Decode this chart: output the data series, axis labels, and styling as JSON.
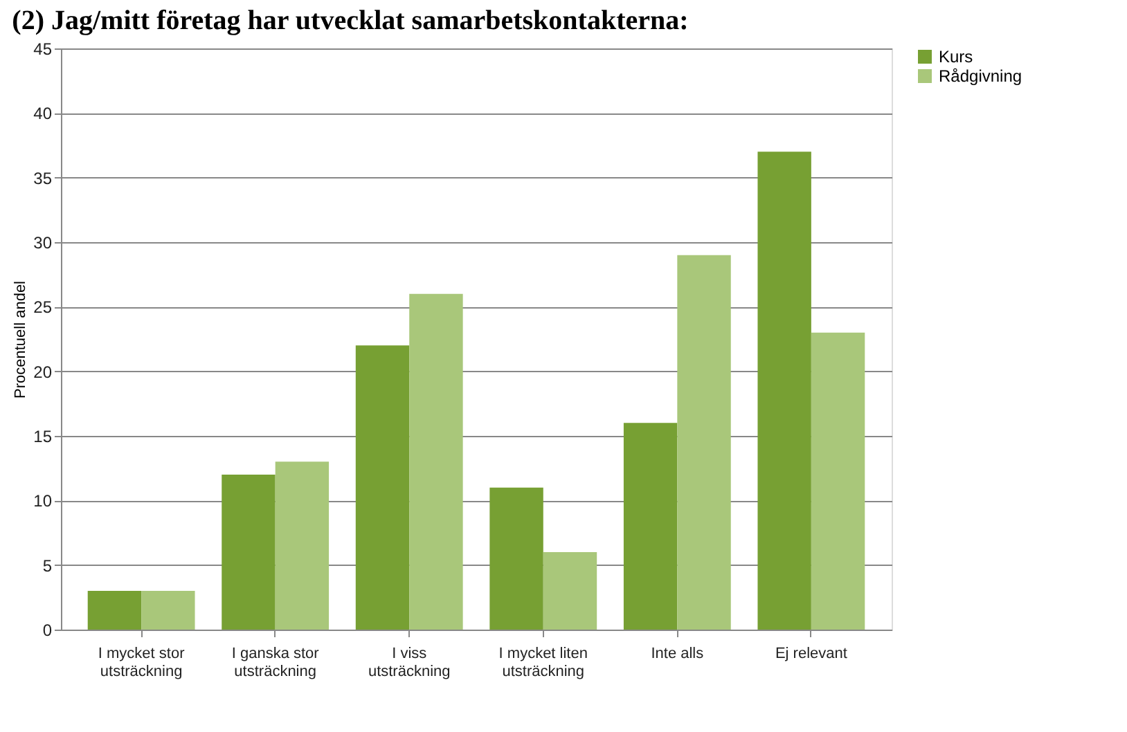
{
  "chart_data": {
    "type": "bar",
    "title": "(2) Jag/mitt företag har utvecklat samarbetskontakterna:",
    "ylabel": "Procentuell andel",
    "categories": [
      "I mycket stor utsträckning",
      "I ganska stor utsträckning",
      "I viss utsträckning",
      "I mycket liten utsträckning",
      "Inte alls",
      "Ej relevant"
    ],
    "series": [
      {
        "name": "Kurs",
        "color": "#77a033",
        "values": [
          3,
          12,
          22,
          11,
          16,
          37
        ]
      },
      {
        "name": "Rådgivning",
        "color": "#a9c77a",
        "values": [
          3,
          13,
          26,
          6,
          29,
          23
        ]
      }
    ],
    "ylim": [
      0,
      45
    ],
    "yticks": [
      0,
      5,
      10,
      15,
      20,
      25,
      30,
      35,
      40,
      45
    ],
    "grid": "y",
    "legend": "right"
  }
}
